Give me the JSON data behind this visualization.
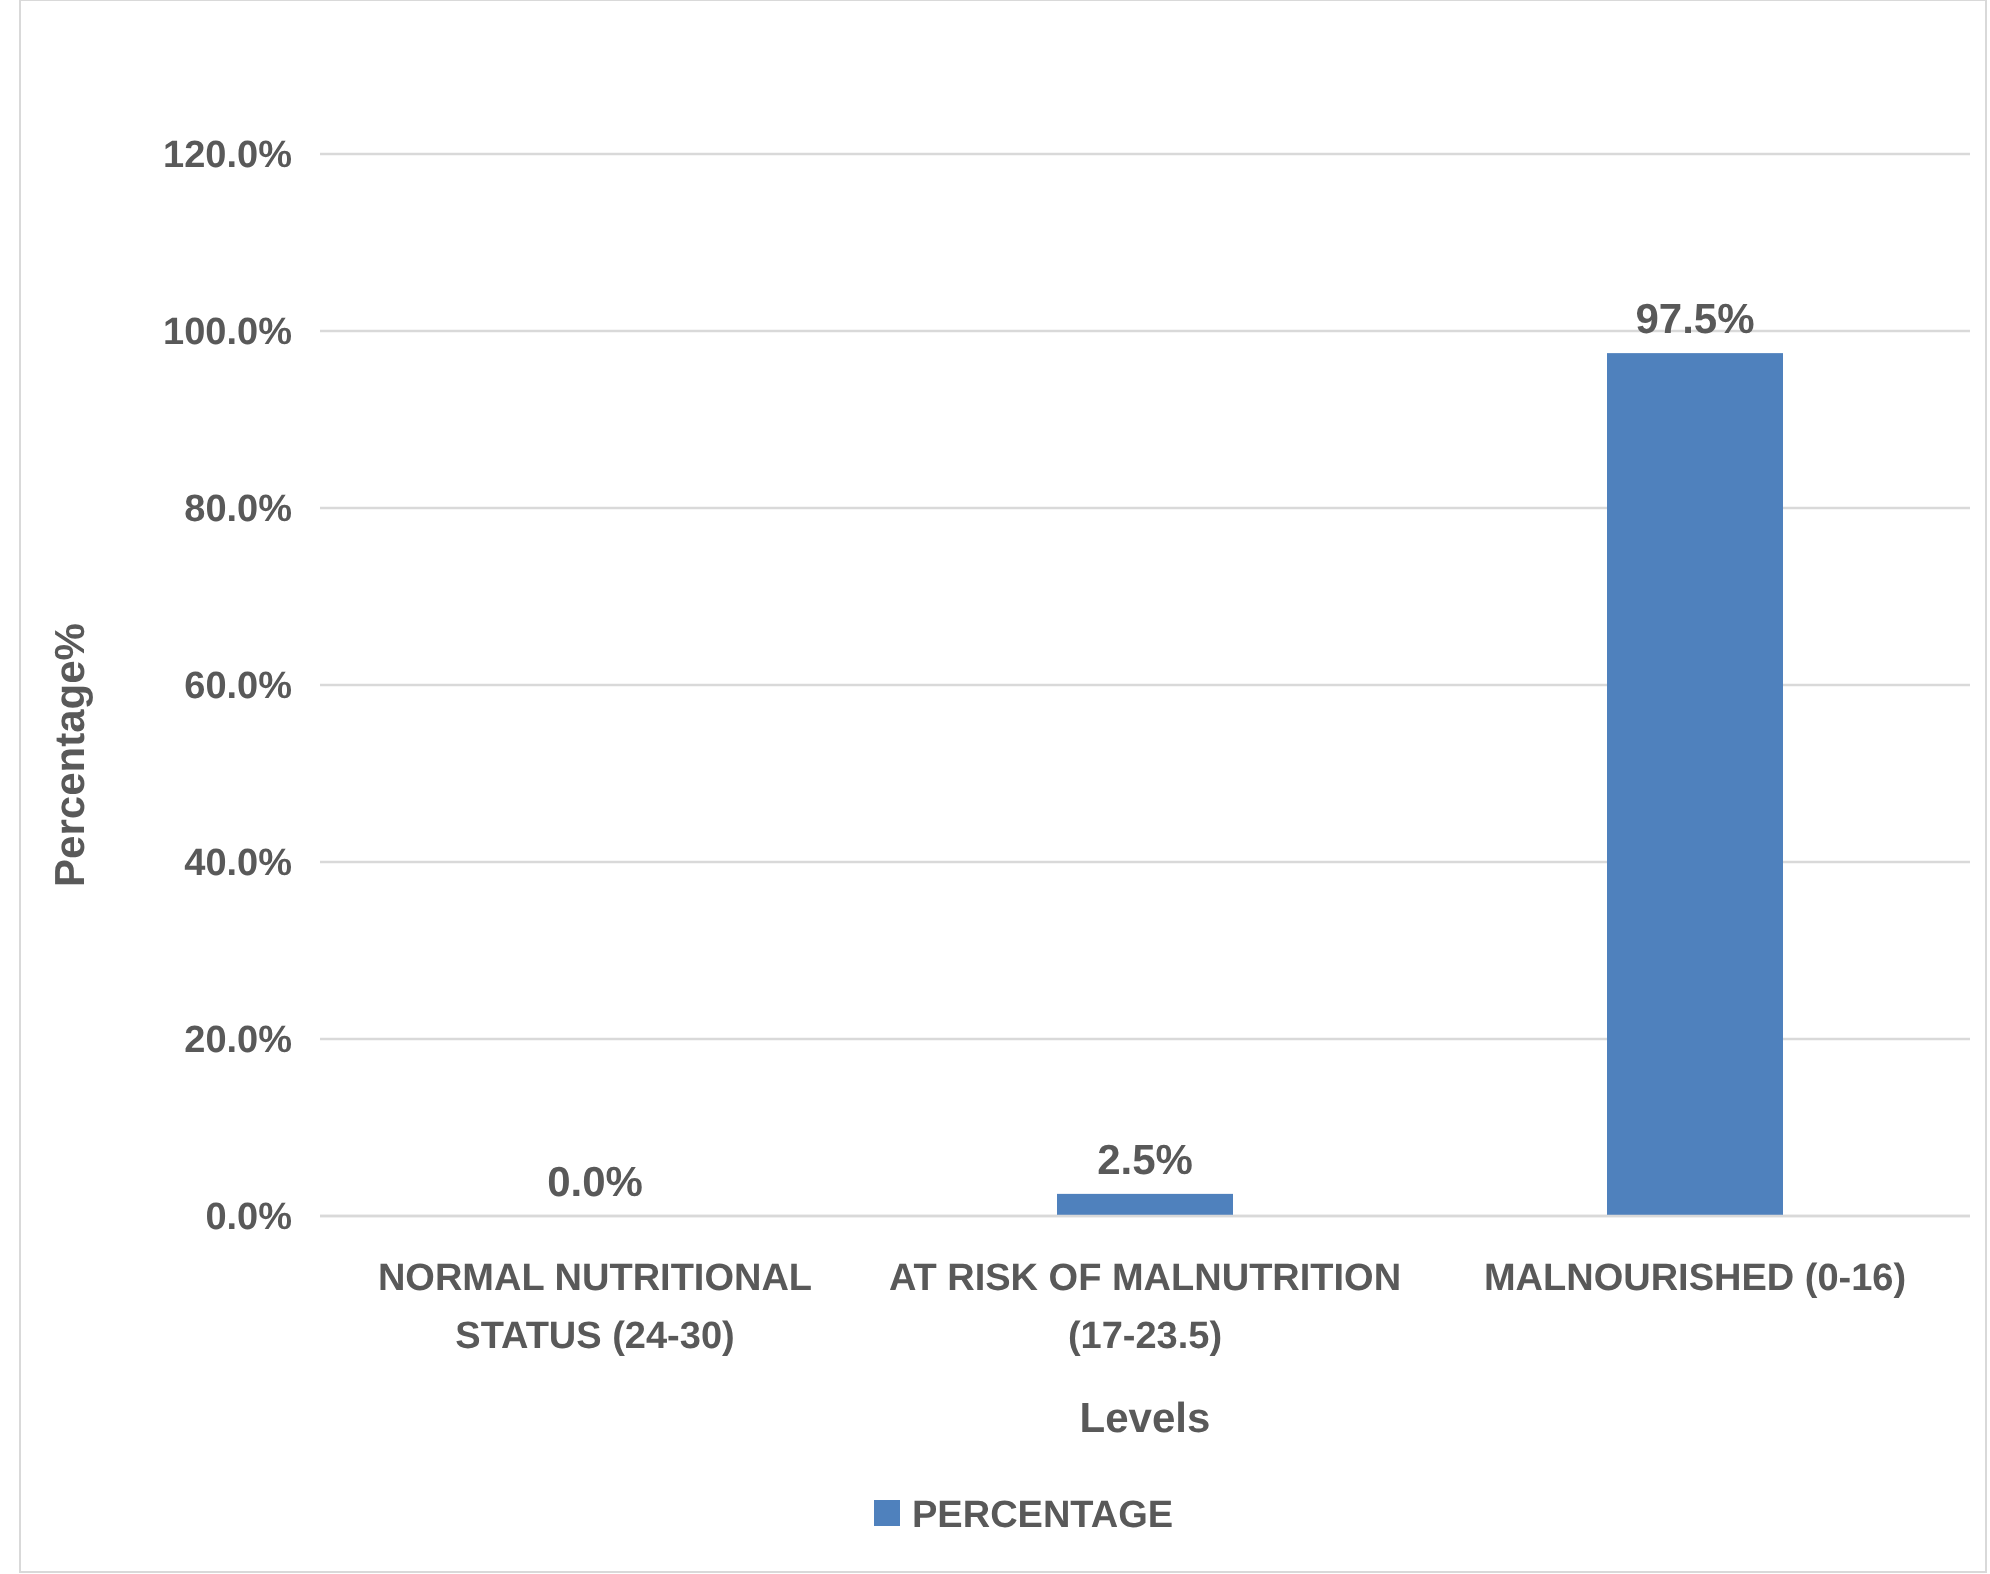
{
  "chart_data": {
    "type": "bar",
    "xlabel": "Levels",
    "ylabel": "Percentage%",
    "categories": [
      "NORMAL NUTRITIONAL STATUS (24-30)",
      "AT RISK OF MALNUTRITION (17-23.5)",
      "MALNOURISHED (0-16)"
    ],
    "series": [
      {
        "name": "PERCENTAGE",
        "color": "#4f81bd",
        "values": [
          0,
          2.5,
          97.5
        ],
        "value_labels": [
          "0.0%",
          "2.5%",
          "97.5%"
        ]
      }
    ],
    "ylim": [
      0,
      120
    ],
    "yticks": [
      {
        "value": 0,
        "label": "0.0%"
      },
      {
        "value": 20,
        "label": "20.0%"
      },
      {
        "value": 40,
        "label": "40.0%"
      },
      {
        "value": 60,
        "label": "60.0%"
      },
      {
        "value": 80,
        "label": "80.0%"
      },
      {
        "value": 100,
        "label": "100.0%"
      },
      {
        "value": 120,
        "label": "120.0%"
      }
    ],
    "grid": "y",
    "legend": "bottom"
  }
}
